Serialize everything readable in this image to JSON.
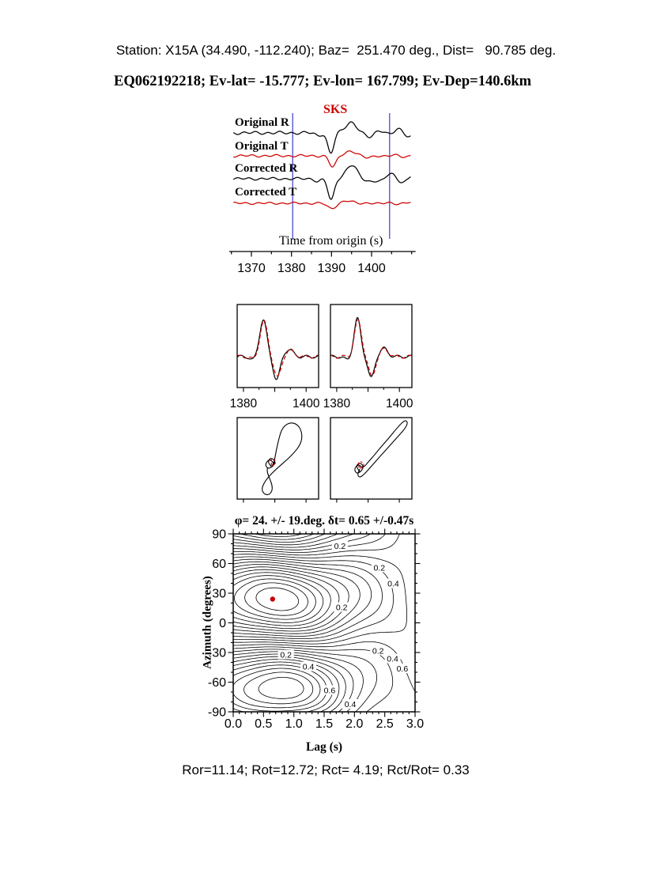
{
  "header": {
    "station_line": "Station: X15A (34.490, -112.240); Baz=  251.470 deg., Dist=   90.785 deg.",
    "event_line": "EQ062192218; Ev-lat= -15.777; Ev-lon= 167.799; Ev-Dep=140.6km"
  },
  "footer": {
    "stats_line": "Ror=11.14; Rot=12.72; Rct= 4.19; Rct/Rot= 0.33"
  },
  "colors": {
    "trace_black": "#000000",
    "trace_red": "#cc0000",
    "window_blue": "#3b3bd0",
    "best_dot_red": "#cc0000"
  },
  "chart_data": [
    {
      "type": "line",
      "name": "seismogram-record",
      "phase_label": "SKS",
      "xlabel": "Time from origin (s)",
      "xlim": [
        1365.5,
        1409.9
      ],
      "xticks": [
        1370,
        1380,
        1390,
        1400
      ],
      "minor_tick_step": 5,
      "window_s": [
        1380.3,
        1404.5
      ],
      "traces": [
        {
          "label": "Original R",
          "color": "#000000",
          "amp": 26,
          "wiggle": 0.05,
          "tail": 0.18,
          "pulses": [
            [
              1386.6,
              1.0,
              -0.13
            ],
            [
              1389.8,
              1.1,
              -1.0
            ],
            [
              1394.8,
              1.9,
              0.52
            ],
            [
              1399.5,
              1.8,
              -0.16
            ],
            [
              1403.5,
              1.6,
              0.12
            ]
          ]
        },
        {
          "label": "Original T",
          "color": "#cc0000",
          "amp": 26,
          "wiggle": 0.04,
          "tail": 0.05,
          "pulses": [
            [
              1390.3,
              1.2,
              -0.55
            ],
            [
              1394.6,
              2.0,
              0.22
            ],
            [
              1399.0,
              2.0,
              -0.07
            ]
          ]
        },
        {
          "label": "Corrected R",
          "color": "#000000",
          "amp": 27,
          "wiggle": 0.04,
          "tail": 0.18,
          "pulses": [
            [
              1386.6,
              1.0,
              -0.12
            ],
            [
              1389.9,
              1.1,
              -1.0
            ],
            [
              1395.0,
              2.0,
              0.62
            ],
            [
              1399.8,
              1.8,
              -0.18
            ],
            [
              1403.8,
              1.6,
              0.12
            ]
          ]
        },
        {
          "label": "Corrected T",
          "color": "#cc0000",
          "amp": 26,
          "wiggle": 0.035,
          "tail": 0.04,
          "pulses": [
            [
              1390.0,
              1.4,
              -0.26
            ],
            [
              1394.0,
              2.0,
              0.1
            ]
          ]
        }
      ]
    },
    {
      "type": "line",
      "name": "windowed-waveforms",
      "xlim": [
        1378,
        1404
      ],
      "xticks_labeled": [
        1380,
        1400
      ],
      "xticks_major": [
        1380,
        1390,
        1400
      ],
      "xticks_minor": [
        1385,
        1395
      ],
      "panels": [
        {
          "series": [
            {
              "color": "#000000",
              "dash": "",
              "pulses": [
                [
                  1383.0,
                  1.2,
                  -0.08
                ],
                [
                  1386.3,
                  1.6,
                  0.9
                ],
                [
                  1390.6,
                  1.5,
                  -0.55
                ],
                [
                  1394.5,
                  1.8,
                  0.18
                ]
              ]
            },
            {
              "color": "#cc0000",
              "dash": "5,3",
              "pulses": [
                [
                  1383.2,
                  1.2,
                  -0.07
                ],
                [
                  1386.5,
                  1.7,
                  0.86
                ],
                [
                  1390.9,
                  1.6,
                  -0.5
                ],
                [
                  1394.8,
                  1.9,
                  0.16
                ]
              ]
            }
          ]
        },
        {
          "series": [
            {
              "color": "#000000",
              "dash": "",
              "pulses": [
                [
                  1383.3,
                  1.2,
                  -0.08
                ],
                [
                  1386.6,
                  1.5,
                  0.92
                ],
                [
                  1391.0,
                  1.4,
                  -0.52
                ],
                [
                  1395.0,
                  1.8,
                  0.2
                ]
              ]
            },
            {
              "color": "#cc0000",
              "dash": "5,3",
              "pulses": [
                [
                  1386.8,
                  1.6,
                  0.88
                ],
                [
                  1391.2,
                  1.5,
                  -0.48
                ],
                [
                  1395.2,
                  1.9,
                  0.18
                ]
              ]
            }
          ]
        }
      ]
    },
    {
      "type": "scatter",
      "name": "particle-motion",
      "panels": [
        {
          "curves": [
            {
              "color": "#000000",
              "dash": "",
              "points": [
                [
                  0.42,
                  0.6
                ],
                [
                  0.37,
                  0.55
                ],
                [
                  0.41,
                  0.49
                ],
                [
                  0.47,
                  0.53
                ],
                [
                  0.44,
                  0.6
                ],
                [
                  0.38,
                  0.63
                ],
                [
                  0.34,
                  0.58
                ],
                [
                  0.39,
                  0.51
                ],
                [
                  0.45,
                  0.55
                ],
                [
                  0.43,
                  0.62
                ],
                [
                  0.46,
                  0.52
                ],
                [
                  0.48,
                  0.4
                ],
                [
                  0.51,
                  0.27
                ],
                [
                  0.54,
                  0.16
                ],
                [
                  0.59,
                  0.09
                ],
                [
                  0.66,
                  0.06
                ],
                [
                  0.73,
                  0.08
                ],
                [
                  0.78,
                  0.14
                ],
                [
                  0.8,
                  0.24
                ],
                [
                  0.77,
                  0.34
                ],
                [
                  0.7,
                  0.43
                ],
                [
                  0.62,
                  0.51
                ],
                [
                  0.54,
                  0.58
                ],
                [
                  0.46,
                  0.65
                ],
                [
                  0.39,
                  0.72
                ],
                [
                  0.33,
                  0.8
                ],
                [
                  0.3,
                  0.88
                ],
                [
                  0.33,
                  0.94
                ],
                [
                  0.39,
                  0.95
                ],
                [
                  0.43,
                  0.9
                ],
                [
                  0.43,
                  0.83
                ],
                [
                  0.4,
                  0.75
                ],
                [
                  0.37,
                  0.68
                ],
                [
                  0.37,
                  0.62
                ]
              ]
            },
            {
              "color": "#cc0000",
              "dash": "3,2",
              "points": [
                [
                  0.43,
                  0.58
                ],
                [
                  0.4,
                  0.53
                ],
                [
                  0.44,
                  0.5
                ],
                [
                  0.48,
                  0.54
                ],
                [
                  0.45,
                  0.59
                ],
                [
                  0.41,
                  0.58
                ]
              ]
            }
          ]
        },
        {
          "curves": [
            {
              "color": "#000000",
              "dash": "",
              "points": [
                [
                  0.36,
                  0.66
                ],
                [
                  0.31,
                  0.61
                ],
                [
                  0.35,
                  0.55
                ],
                [
                  0.41,
                  0.59
                ],
                [
                  0.38,
                  0.66
                ],
                [
                  0.32,
                  0.69
                ],
                [
                  0.29,
                  0.63
                ],
                [
                  0.34,
                  0.57
                ],
                [
                  0.4,
                  0.62
                ],
                [
                  0.46,
                  0.55
                ],
                [
                  0.54,
                  0.46
                ],
                [
                  0.62,
                  0.36
                ],
                [
                  0.71,
                  0.26
                ],
                [
                  0.79,
                  0.16
                ],
                [
                  0.87,
                  0.07
                ],
                [
                  0.92,
                  0.03
                ],
                [
                  0.95,
                  0.06
                ],
                [
                  0.92,
                  0.13
                ],
                [
                  0.84,
                  0.22
                ],
                [
                  0.75,
                  0.32
                ],
                [
                  0.66,
                  0.42
                ],
                [
                  0.57,
                  0.52
                ],
                [
                  0.49,
                  0.61
                ],
                [
                  0.42,
                  0.69
                ],
                [
                  0.36,
                  0.74
                ],
                [
                  0.33,
                  0.7
                ],
                [
                  0.36,
                  0.63
                ]
              ]
            },
            {
              "color": "#cc0000",
              "dash": "3,2",
              "points": [
                [
                  0.37,
                  0.62
                ],
                [
                  0.33,
                  0.57
                ],
                [
                  0.37,
                  0.53
                ],
                [
                  0.42,
                  0.58
                ],
                [
                  0.38,
                  0.63
                ],
                [
                  0.34,
                  0.6
                ]
              ]
            }
          ]
        }
      ]
    },
    {
      "type": "contour",
      "name": "splitting-misfit-map",
      "title": "φ= 24. +/- 19.deg. δt= 0.65 +/-0.47s",
      "xlabel": "Lag (s)",
      "ylabel": "Azimuth (degrees)",
      "xlim": [
        0,
        3
      ],
      "ylim": [
        -90,
        90
      ],
      "xticks": [
        0.0,
        0.5,
        1.0,
        1.5,
        2.0,
        2.5,
        3.0
      ],
      "yticks": [
        90,
        60,
        30,
        0,
        -30,
        -60,
        -90
      ],
      "x_minor": 0.1,
      "y_minor": 10,
      "best": {
        "lag_s": 0.65,
        "lag_err_s": 0.47,
        "fast_azimuth_deg": 24,
        "azimuth_err_deg": 19
      },
      "field": {
        "min_lag": 0.65,
        "min_az": 24,
        "g_width": 1.35,
        "ripple": 0.015
      },
      "levels_start": 0.04,
      "levels_step": 0.04,
      "levels_end": 0.96,
      "labels": [
        {
          "x": 1.76,
          "y": 78,
          "t": "0.2"
        },
        {
          "x": 2.41,
          "y": 56,
          "t": "0.2"
        },
        {
          "x": 2.64,
          "y": 40,
          "t": "0.4"
        },
        {
          "x": 1.79,
          "y": 16,
          "t": "0.2"
        },
        {
          "x": 0.87,
          "y": -32,
          "t": "0.2"
        },
        {
          "x": 2.39,
          "y": -28,
          "t": "0.2"
        },
        {
          "x": 2.63,
          "y": -36,
          "t": "0.4"
        },
        {
          "x": 2.79,
          "y": -46,
          "t": "0.6"
        },
        {
          "x": 1.24,
          "y": -44,
          "t": "0.4"
        },
        {
          "x": 1.59,
          "y": -68,
          "t": "0.6"
        },
        {
          "x": 1.93,
          "y": -82,
          "t": "0.4"
        }
      ]
    }
  ]
}
